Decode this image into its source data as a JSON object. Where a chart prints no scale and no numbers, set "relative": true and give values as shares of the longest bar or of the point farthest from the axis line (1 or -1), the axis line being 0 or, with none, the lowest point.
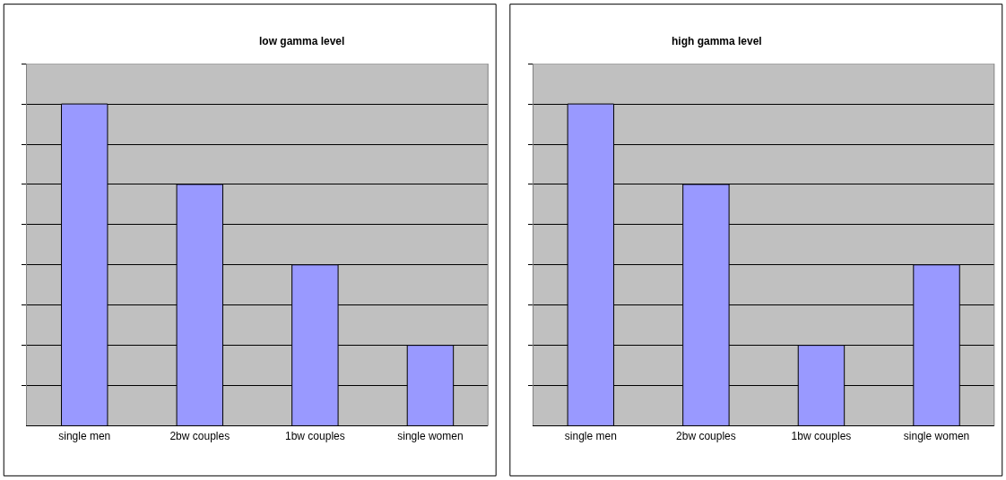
{
  "chart_data": [
    {
      "type": "bar",
      "title": "low gamma level",
      "categories": [
        "single men",
        "2bw couples",
        "1bw couples",
        "single women"
      ],
      "values": [
        1,
        0.75,
        0.5,
        0.25
      ],
      "color": "#9999ff",
      "relative": true,
      "grid": "y",
      "legend": false
    },
    {
      "type": "bar",
      "title": "high gamma level",
      "categories": [
        "single men",
        "2bw couples",
        "1bw couples",
        "single women"
      ],
      "values": [
        1,
        0.75,
        0.25,
        0.5
      ],
      "color": "#9999ff",
      "relative": true,
      "grid": "y",
      "legend": false
    }
  ]
}
